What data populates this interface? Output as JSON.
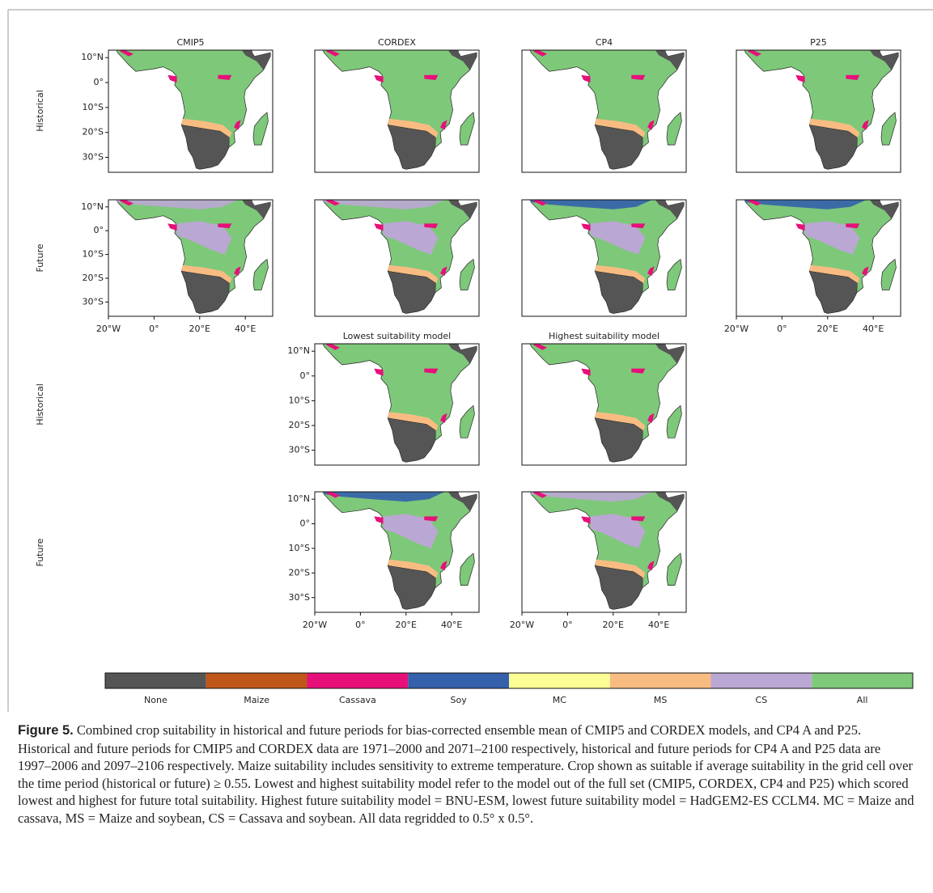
{
  "panels": {
    "columns": [
      "CMIP5",
      "CORDEX",
      "CP4",
      "P25"
    ],
    "bottom_columns": [
      "Lowest suitability model",
      "Highest suitability model"
    ],
    "row_labels": [
      "Historical",
      "Future",
      "Historical",
      "Future"
    ]
  },
  "axis": {
    "lat_ticks": [
      {
        "value": 10,
        "label": "10°N"
      },
      {
        "value": 0,
        "label": "0°"
      },
      {
        "value": -10,
        "label": "10°S"
      },
      {
        "value": -20,
        "label": "20°S"
      },
      {
        "value": -30,
        "label": "30°S"
      }
    ],
    "lon_ticks": [
      {
        "value": -20,
        "label": "20°W"
      },
      {
        "value": 0,
        "label": "0°"
      },
      {
        "value": 20,
        "label": "20°E"
      },
      {
        "value": 40,
        "label": "40°E"
      }
    ]
  },
  "legend": {
    "categories": [
      {
        "label": "None",
        "color": "#555555"
      },
      {
        "label": "Maize",
        "color": "#c0561a"
      },
      {
        "label": "Cassava",
        "color": "#e7107a"
      },
      {
        "label": "Soy",
        "color": "#3460ac"
      },
      {
        "label": "MC",
        "color": "#fdfd96"
      },
      {
        "label": "MS",
        "color": "#f8bc82"
      },
      {
        "label": "CS",
        "color": "#bba7d3"
      },
      {
        "label": "All",
        "color": "#7ec87a"
      }
    ]
  },
  "caption": {
    "label": "Figure 5.",
    "text": "Combined crop suitability in historical and future periods for bias-corrected ensemble mean of CMIP5 and CORDEX models, and CP4 A and P25. Historical and future periods for CMIP5 and CORDEX data are 1971–2000 and 2071–2100 respectively, historical and future periods for CP4 A and P25 data are 1997–2006 and 2097–2106 respectively. Maize suitability includes sensitivity to extreme temperature. Crop shown as suitable if average suitability in the grid cell over the time period (historical or future) ≥ 0.55. Lowest and highest suitability model refer to the model out of the full set (CMIP5, CORDEX, CP4 and P25) which scored lowest and highest for future total suitability. Highest future suitability model = BNU-ESM, lowest future suitability model = HadGEM2-ES CCLM4. MC = Maize and cassava, MS = Maize and soybean, CS = Cassava and soybean. All data regridded to 0.5° x 0.5°."
  }
}
